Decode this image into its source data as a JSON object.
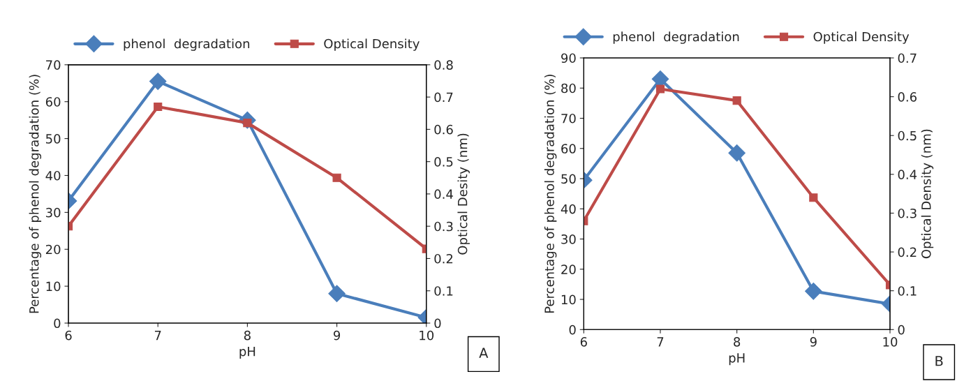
{
  "chart_data": [
    {
      "type": "line",
      "xlabel": "pH",
      "ylabel": "Percentage of phenol degradation (%)",
      "y2label": "Optical Desity (nm)",
      "x": [
        6,
        7,
        8,
        9,
        10
      ],
      "xlim": [
        6,
        10
      ],
      "xticks": [
        6,
        7,
        8,
        9,
        10
      ],
      "ylim": [
        0,
        70
      ],
      "yticks": [
        0,
        10,
        20,
        30,
        40,
        50,
        60,
        70
      ],
      "y2lim": [
        0,
        0.8
      ],
      "y2ticks": [
        0,
        0.1,
        0.2,
        0.3,
        0.4,
        0.5,
        0.6,
        0.7,
        0.8
      ],
      "grid": false,
      "legend": "top",
      "annotations": [
        "A"
      ],
      "series": [
        {
          "name": "phenol  degradation",
          "color": "#4a7ebb",
          "marker": "diamond",
          "values": [
            33.1,
            65.5,
            55,
            8,
            1.5
          ]
        },
        {
          "name": "Optical Density",
          "color": "#be4b48",
          "marker": "square",
          "axis": "y2",
          "values": [
            0.3,
            0.67,
            0.62,
            0.45,
            0.23
          ]
        }
      ]
    },
    {
      "type": "line",
      "xlabel": "pH",
      "ylabel": "Percentage of phenol degradation (%)",
      "y2label": "Optical Density (nm)",
      "x": [
        6,
        7,
        8,
        9,
        10
      ],
      "xlim": [
        6,
        10
      ],
      "xticks": [
        6,
        7,
        8,
        9,
        10
      ],
      "ylim": [
        0,
        90
      ],
      "yticks": [
        0,
        10,
        20,
        30,
        40,
        50,
        60,
        70,
        80,
        90
      ],
      "y2lim": [
        0,
        0.7
      ],
      "y2ticks": [
        0,
        0.1,
        0.2,
        0.3,
        0.4,
        0.5,
        0.6,
        0.7
      ],
      "grid": false,
      "legend": "top",
      "annotations": [
        "B"
      ],
      "series": [
        {
          "name": "phenol  degradation",
          "color": "#4a7ebb",
          "marker": "diamond",
          "values": [
            49.5,
            83,
            58.5,
            12.7,
            8.5
          ]
        },
        {
          "name": "Optical Density",
          "color": "#be4b48",
          "marker": "square",
          "axis": "y2",
          "values": [
            0.28,
            0.62,
            0.59,
            0.34,
            0.115
          ]
        }
      ]
    }
  ]
}
